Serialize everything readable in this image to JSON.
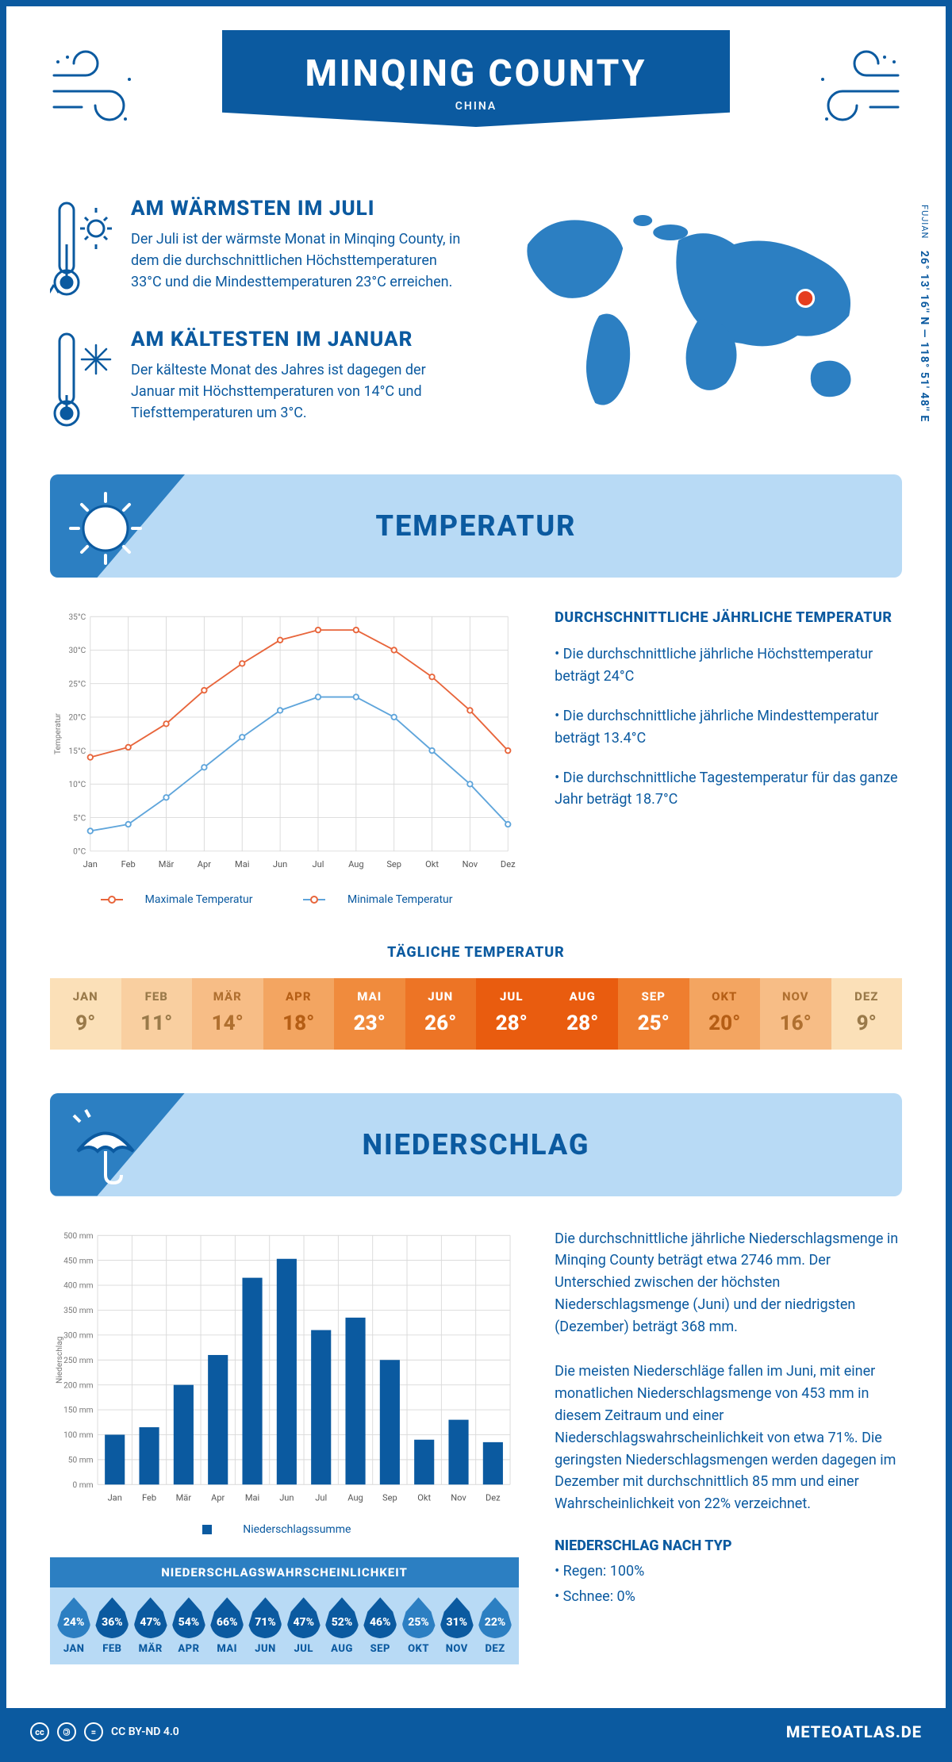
{
  "colors": {
    "primary": "#0b5aa0",
    "primary_mid": "#2c7fc2",
    "light_blue": "#b8daf5",
    "chart_orange": "#e8653b",
    "chart_blue": "#5fa5db",
    "grid": "#d9d9d9",
    "marker_red": "#e53e1f",
    "marker_white": "#ffffff"
  },
  "header": {
    "title": "MINQING COUNTY",
    "country": "CHINA"
  },
  "info": {
    "warm": {
      "heading": "AM WÄRMSTEN IM JULI",
      "body": "Der Juli ist der wärmste Monat in Minqing County, in dem die durchschnittlichen Höchsttemperaturen 33°C und die Mindesttemperaturen 23°C erreichen."
    },
    "cold": {
      "heading": "AM KÄLTESTEN IM JANUAR",
      "body": "Der kälteste Monat des Jahres ist dagegen der Januar mit Höchsttemperaturen von 14°C und Tiefsttemperaturen um 3°C."
    },
    "coords_region": "FUJIAN",
    "coords": "26° 13' 16'' N — 118° 51' 48'' E"
  },
  "temperature": {
    "section_title": "TEMPERATUR",
    "chart": {
      "months": [
        "Jan",
        "Feb",
        "Mär",
        "Apr",
        "Mai",
        "Jun",
        "Jul",
        "Aug",
        "Sep",
        "Okt",
        "Nov",
        "Dez"
      ],
      "max": [
        14,
        15.5,
        19,
        24,
        28,
        31.5,
        33,
        33,
        30,
        26,
        21,
        15
      ],
      "min": [
        3,
        4,
        8,
        12.5,
        17,
        21,
        23,
        23,
        20,
        15,
        10,
        4
      ],
      "ylim": [
        0,
        35
      ],
      "ytick_step": 5,
      "ylabel": "Temperatur",
      "ytick_suffix": "°C",
      "line_width": 2,
      "marker_radius": 3.5
    },
    "legend_max": "Maximale Temperatur",
    "legend_min": "Minimale Temperatur",
    "text": {
      "heading": "DURCHSCHNITTLICHE JÄHRLICHE TEMPERATUR",
      "b1": "• Die durchschnittliche jährliche Höchsttemperatur beträgt 24°C",
      "b2": "• Die durchschnittliche jährliche Mindesttemperatur beträgt 13.4°C",
      "b3": "• Die durchschnittliche Tagestemperatur für das ganze Jahr beträgt 18.7°C"
    },
    "daily": {
      "title": "TÄGLICHE TEMPERATUR",
      "months": [
        "JAN",
        "FEB",
        "MÄR",
        "APR",
        "MAI",
        "JUN",
        "JUL",
        "AUG",
        "SEP",
        "OKT",
        "NOV",
        "DEZ"
      ],
      "values": [
        "9°",
        "11°",
        "14°",
        "18°",
        "23°",
        "26°",
        "28°",
        "28°",
        "25°",
        "20°",
        "16°",
        "9°"
      ],
      "bg_colors": [
        "#fbe0b8",
        "#f9cfa0",
        "#f7bd86",
        "#f3a561",
        "#f08b3d",
        "#ed7425",
        "#e95c0f",
        "#e95c0f",
        "#ef7e2f",
        "#f3a561",
        "#f7bd86",
        "#fbe0b8"
      ],
      "text_colors": [
        "#9a7a4a",
        "#9a7a4a",
        "#b07030",
        "#b55e15",
        "#ffffff",
        "#ffffff",
        "#ffffff",
        "#ffffff",
        "#ffffff",
        "#b55e15",
        "#b07030",
        "#9a7a4a"
      ]
    }
  },
  "precip": {
    "section_title": "NIEDERSCHLAG",
    "chart": {
      "months": [
        "Jan",
        "Feb",
        "Mär",
        "Apr",
        "Mai",
        "Jun",
        "Jul",
        "Aug",
        "Sep",
        "Okt",
        "Nov",
        "Dez"
      ],
      "values": [
        100,
        115,
        200,
        260,
        415,
        453,
        310,
        335,
        250,
        90,
        130,
        85
      ],
      "ylim": [
        0,
        500
      ],
      "ytick_step": 50,
      "ylabel": "Niederschlag",
      "ytick_suffix": " mm",
      "bar_color": "#0b5aa0",
      "bar_width": 0.58
    },
    "legend": "Niederschlagssumme",
    "text": {
      "p1": "Die durchschnittliche jährliche Niederschlagsmenge in Minqing County beträgt etwa 2746 mm. Der Unterschied zwischen der höchsten Niederschlagsmenge (Juni) und der niedrigsten (Dezember) beträgt 368 mm.",
      "p2": "Die meisten Niederschläge fallen im Juni, mit einer monatlichen Niederschlagsmenge von 453 mm in diesem Zeitraum und einer Niederschlagswahrscheinlichkeit von etwa 71%. Die geringsten Niederschlagsmengen werden dagegen im Dezember mit durchschnittlich 85 mm und einer Wahrscheinlichkeit von 22% verzeichnet.",
      "type_heading": "NIEDERSCHLAG NACH TYP",
      "type_b1": "• Regen: 100%",
      "type_b2": "• Schnee: 0%"
    },
    "prob": {
      "title": "NIEDERSCHLAGSWAHRSCHEINLICHKEIT",
      "months": [
        "JAN",
        "FEB",
        "MÄR",
        "APR",
        "MAI",
        "JUN",
        "JUL",
        "AUG",
        "SEP",
        "OKT",
        "NOV",
        "DEZ"
      ],
      "values": [
        "24%",
        "36%",
        "47%",
        "54%",
        "66%",
        "71%",
        "47%",
        "52%",
        "46%",
        "25%",
        "31%",
        "22%"
      ],
      "drop_colors": [
        "#2c7fc2",
        "#0b5aa0",
        "#0b5aa0",
        "#0b5aa0",
        "#0b5aa0",
        "#0b5aa0",
        "#0b5aa0",
        "#0b5aa0",
        "#0b5aa0",
        "#2c7fc2",
        "#0b5aa0",
        "#2c7fc2"
      ]
    }
  },
  "footer": {
    "license": "CC BY-ND 4.0",
    "brand": "METEOATLAS.DE"
  }
}
